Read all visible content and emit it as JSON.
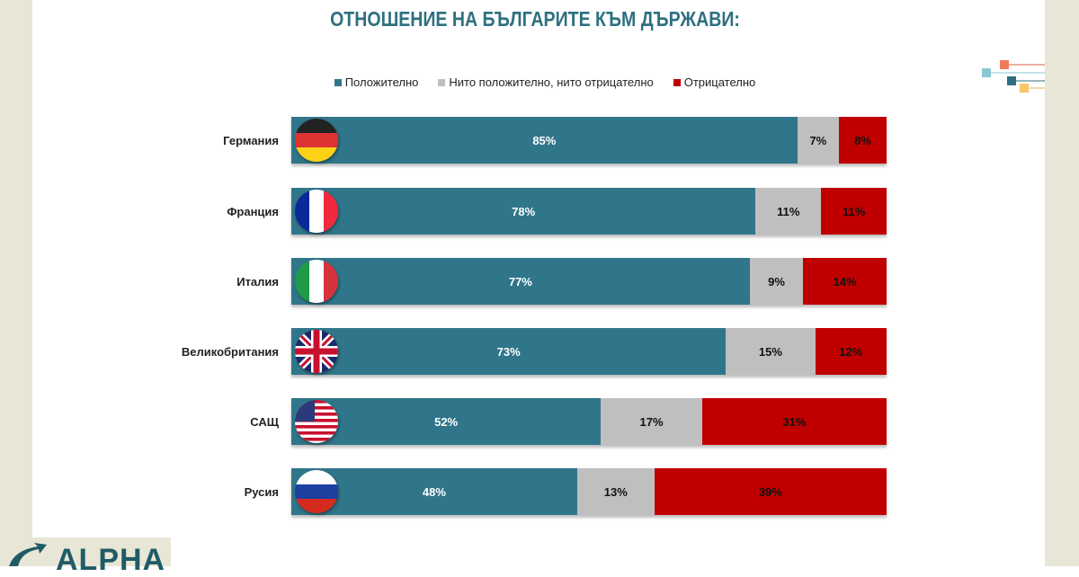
{
  "chart_data": {
    "type": "bar",
    "orientation": "horizontal",
    "stacked": true,
    "title": "ОТНОШЕНИЕ НА БЪЛГАРИТЕ КЪМ ДЪРЖАВИ:",
    "categories": [
      "Германия",
      "Франция",
      "Италия",
      "Великобритания",
      "САЩ",
      "Русия"
    ],
    "flags": [
      "germany-flag",
      "france-flag",
      "italy-flag",
      "uk-flag",
      "usa-flag",
      "russia-flag"
    ],
    "series": [
      {
        "name": "Положително",
        "color": "#30768a",
        "values": [
          85,
          78,
          77,
          73,
          52,
          48
        ],
        "labels": [
          "85%",
          "78%",
          "77%",
          "73%",
          "52%",
          "48%"
        ]
      },
      {
        "name": "Нито положително, нито отрицателно",
        "color": "#bfbfbf",
        "values": [
          7,
          11,
          9,
          15,
          17,
          13
        ],
        "labels": [
          "7%",
          "11%",
          "9%",
          "15%",
          "17%",
          "13%"
        ]
      },
      {
        "name": "Отрицателно",
        "color": "#c00000",
        "values": [
          8,
          11,
          14,
          12,
          31,
          39
        ],
        "labels": [
          "8%",
          "11%",
          "14%",
          "12%",
          "31%",
          "39%"
        ]
      }
    ],
    "legend": "top",
    "grid": false
  },
  "logo": "ALPHA"
}
